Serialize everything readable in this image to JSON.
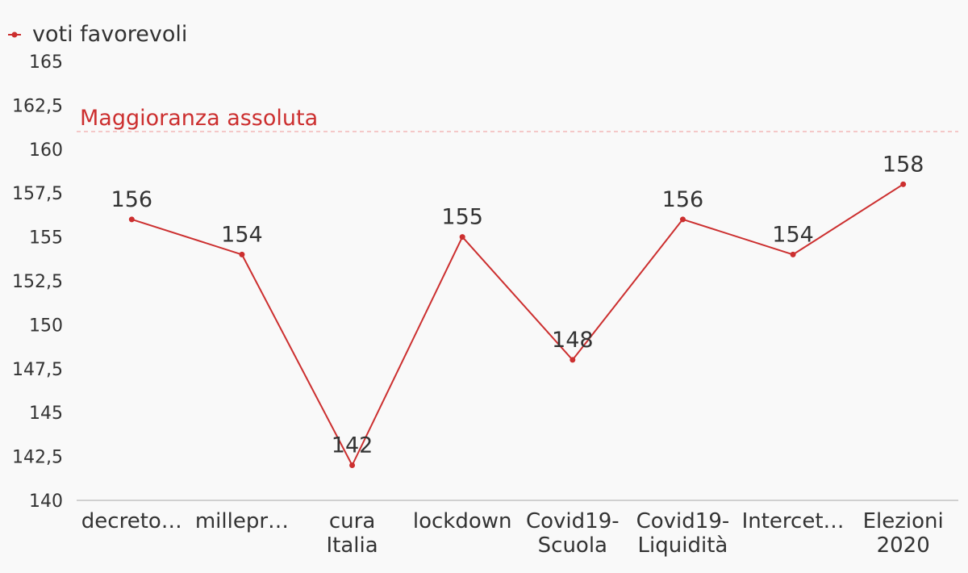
{
  "chart_data": {
    "type": "line",
    "categories": [
      [
        "decreto…"
      ],
      [
        "millepr…"
      ],
      [
        "cura",
        "Italia"
      ],
      [
        "lockdown"
      ],
      [
        "Covid19-",
        "Scuola"
      ],
      [
        "Covid19-",
        "Liquidità"
      ],
      [
        "Intercet…"
      ],
      [
        "Elezioni",
        "2020"
      ]
    ],
    "series": [
      {
        "name": "voti favorevoli",
        "values": [
          156,
          154,
          142,
          155,
          148,
          156,
          154,
          158
        ],
        "color": "#cc2f2f"
      }
    ],
    "ylim": [
      140,
      165
    ],
    "yticks": [
      140,
      142.5,
      145,
      147.5,
      150,
      152.5,
      155,
      157.5,
      160,
      162.5,
      165
    ],
    "ytick_labels": [
      "140",
      "142,5",
      "145",
      "147,5",
      "150",
      "152,5",
      "155",
      "157,5",
      "160",
      "162,5",
      "165"
    ],
    "reference_line": {
      "value": 161,
      "label": "Maggioranza assoluta",
      "color": "#cc2f2f",
      "line_color": "#f2b8b8"
    },
    "legend_position": "top-left",
    "grid": false,
    "axis_color": "#d0d0d0"
  }
}
